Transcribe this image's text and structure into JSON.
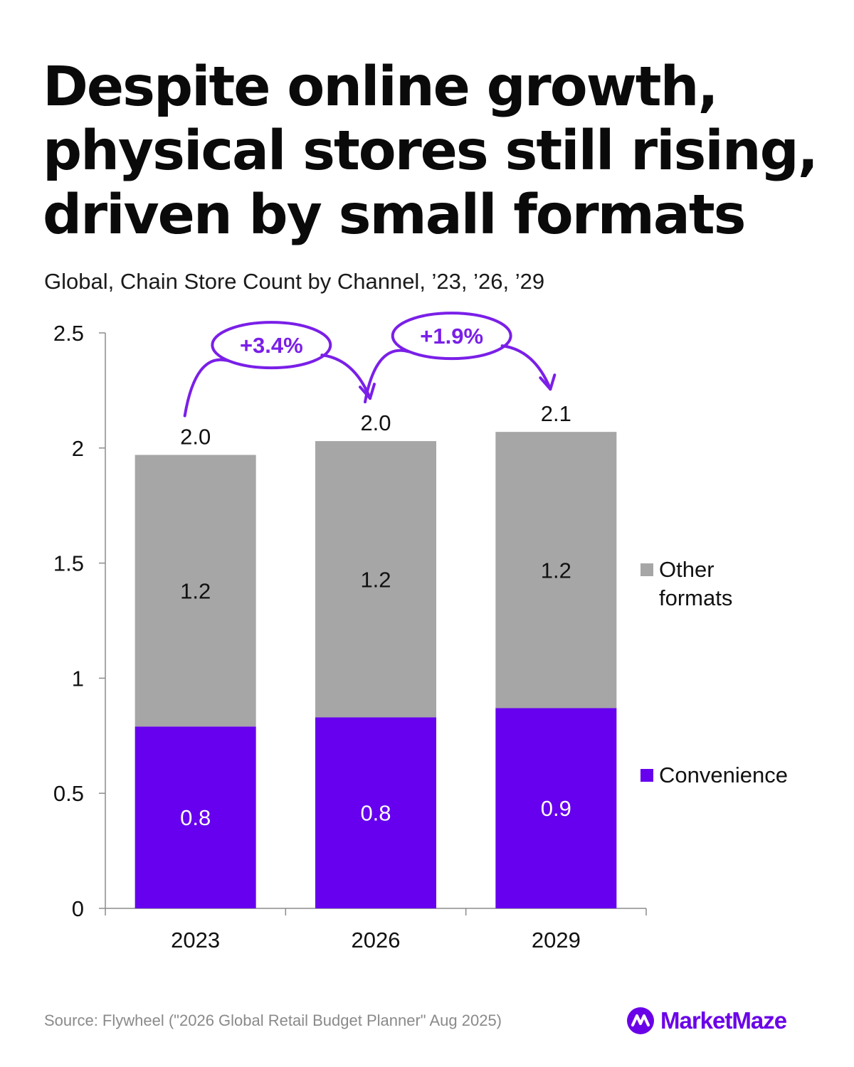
{
  "title_lines": [
    "Despite online growth,",
    "physical stores still rising,",
    "driven by small formats"
  ],
  "subtitle": "Global, Chain Store Count by Channel, ’23, ’26, ’29",
  "source": "Source: Flywheel (\"2026 Global Retail Budget Planner\" Aug 2025)",
  "brand": {
    "name": "MarketMaze",
    "logo_icon": "marketmaze-logo-icon"
  },
  "colors": {
    "convenience": "#6600ee",
    "other": "#a6a6a6",
    "annotation": "#7a1fe8"
  },
  "chart_data": {
    "type": "bar",
    "stacked": true,
    "categories": [
      "2023",
      "2026",
      "2029"
    ],
    "series": [
      {
        "name": "Convenience",
        "values": [
          0.79,
          0.83,
          0.87
        ],
        "labels": [
          "0.8",
          "0.8",
          "0.9"
        ],
        "color": "#6600ee"
      },
      {
        "name": "Other formats",
        "values": [
          1.18,
          1.2,
          1.2
        ],
        "labels": [
          "1.2",
          "1.2",
          "1.2"
        ],
        "color": "#a6a6a6"
      }
    ],
    "totals": [
      1.97,
      2.03,
      2.07
    ],
    "total_labels": [
      "2.0",
      "2.0",
      "2.1"
    ],
    "ylim": [
      0,
      2.5
    ],
    "yticks": [
      0,
      0.5,
      1,
      1.5,
      2,
      2.5
    ],
    "ytick_labels": [
      "0",
      "0.5",
      "1",
      "1.5",
      "2",
      "2.5"
    ],
    "legend_position": "right",
    "legend": [
      "Other formats",
      "Convenience"
    ],
    "annotations": [
      {
        "text": "+3.4%",
        "from": "2023",
        "to": "2026"
      },
      {
        "text": "+1.9%",
        "from": "2026",
        "to": "2029"
      }
    ]
  }
}
